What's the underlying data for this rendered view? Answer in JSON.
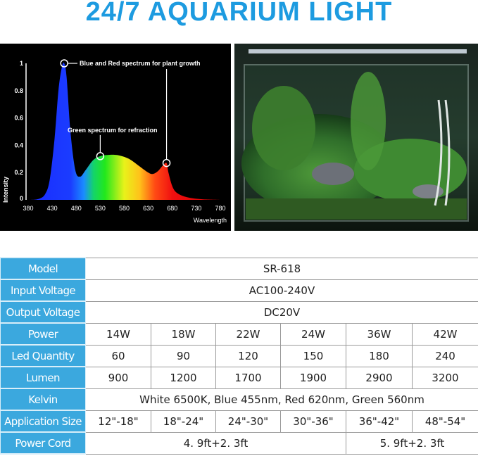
{
  "title": "24/7 AQUARIUM LIGHT",
  "chart_data": {
    "type": "area",
    "xlabel": "Wavelength",
    "ylabel": "Intensity",
    "xlim": [
      380,
      780
    ],
    "ylim": [
      0,
      1
    ],
    "x_ticks": [
      "380",
      "430",
      "480",
      "530",
      "580",
      "630",
      "680",
      "730",
      "780"
    ],
    "y_ticks": [
      "0",
      "0.2",
      "0.4",
      "0.6",
      "0.8",
      "1"
    ],
    "grid": false,
    "x": [
      380,
      400,
      415,
      425,
      435,
      443,
      450,
      455,
      460,
      468,
      478,
      488,
      500,
      515,
      530,
      550,
      570,
      590,
      610,
      630,
      640,
      650,
      660,
      668,
      672,
      680,
      690,
      710,
      740,
      780
    ],
    "y": [
      0,
      0.005,
      0.04,
      0.15,
      0.45,
      0.8,
      0.97,
      1.0,
      0.9,
      0.5,
      0.22,
      0.17,
      0.22,
      0.29,
      0.32,
      0.33,
      0.325,
      0.3,
      0.25,
      0.2,
      0.19,
      0.21,
      0.25,
      0.27,
      0.2,
      0.1,
      0.05,
      0.02,
      0.005,
      0
    ],
    "annotations": [
      {
        "text": "Blue and Red spectrum for plant growth",
        "points": [
          [
            455,
            1.0
          ],
          [
            668,
            0.27
          ]
        ]
      },
      {
        "text": "Green spectrum for refraction",
        "points": [
          [
            530,
            0.32
          ]
        ]
      }
    ]
  },
  "table": {
    "rows": [
      {
        "label": "Model",
        "cells": [
          {
            "text": "SR-618",
            "span": 6
          }
        ]
      },
      {
        "label": "Input Voltage",
        "cells": [
          {
            "text": "AC100-240V",
            "span": 6
          }
        ]
      },
      {
        "label": "Output Voltage",
        "cells": [
          {
            "text": "DC20V",
            "span": 6
          }
        ]
      },
      {
        "label": "Power",
        "cells": [
          {
            "text": "14W"
          },
          {
            "text": "18W"
          },
          {
            "text": "22W"
          },
          {
            "text": "24W"
          },
          {
            "text": "36W"
          },
          {
            "text": "42W"
          }
        ]
      },
      {
        "label": "Led Quantity",
        "cells": [
          {
            "text": "60"
          },
          {
            "text": "90"
          },
          {
            "text": "120"
          },
          {
            "text": "150"
          },
          {
            "text": "180"
          },
          {
            "text": "240"
          }
        ]
      },
      {
        "label": "Lumen",
        "cells": [
          {
            "text": "900"
          },
          {
            "text": "1200"
          },
          {
            "text": "1700"
          },
          {
            "text": "1900"
          },
          {
            "text": "2900"
          },
          {
            "text": "3200"
          }
        ]
      },
      {
        "label": "Kelvin",
        "cells": [
          {
            "text": "White 6500K,  Blue 455nm,  Red 620nm,  Green 560nm",
            "span": 6
          }
        ]
      },
      {
        "label": "Application Size",
        "cells": [
          {
            "text": "12\"-18\""
          },
          {
            "text": "18\"-24\""
          },
          {
            "text": "24\"-30\""
          },
          {
            "text": "30\"-36\""
          },
          {
            "text": "36\"-42\""
          },
          {
            "text": "48\"-54\""
          }
        ]
      },
      {
        "label": "Power Cord",
        "cells": [
          {
            "text": "4. 9ft+2. 3ft",
            "span": 4
          },
          {
            "text": "5. 9ft+2. 3ft",
            "span": 2
          }
        ]
      }
    ]
  },
  "colors": {
    "title": "#1d9be0",
    "label_bg": "#3ba8de"
  }
}
